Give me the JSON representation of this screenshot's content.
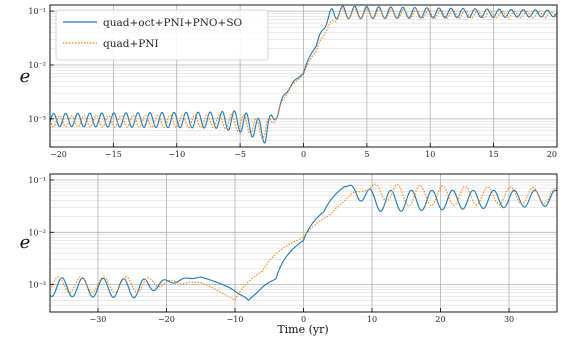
{
  "chart_data": [
    {
      "type": "line",
      "ylabel": "e",
      "xlabel": "",
      "xlim": [
        -20,
        20
      ],
      "ylim": [
        0.0003,
        0.13
      ],
      "yscale": "log",
      "grid": true,
      "xticks": [
        -20,
        -15,
        -10,
        -5,
        0,
        5,
        10,
        15,
        20
      ],
      "xtick_labels": [
        "−20",
        "−15",
        "−10",
        "−5",
        "0",
        "5",
        "10",
        "15",
        "20"
      ],
      "yticks": [
        0.001,
        0.01,
        0.1
      ],
      "ytick_labels": [
        "10⁻³",
        "10⁻²",
        "10⁻¹"
      ],
      "legend_position": "top-left",
      "series": [
        {
          "name": "quad+oct+PNI+PNO+SO",
          "color": "#1f77b4",
          "style": "solid",
          "x": [
            -20,
            -7,
            -5,
            -3,
            -2,
            0,
            1,
            1.8,
            2.3,
            20
          ],
          "y": [
            0.00095,
            0.00095,
            0.0009,
            0.00055,
            0.0013,
            0.007,
            0.022,
            0.06,
            0.095,
            0.09
          ],
          "osc_amp": [
            0.12,
            0.15,
            0.2,
            0.2,
            0.05,
            0,
            0,
            0.05,
            0.12,
            0.06
          ],
          "osc_period": 0.95
        },
        {
          "name": "quad+PNI",
          "color": "#ff7f0e",
          "style": "dotted",
          "x": [
            -20,
            -7,
            -5,
            -3,
            -2,
            0,
            1,
            2,
            2.8,
            20
          ],
          "y": [
            0.0009,
            0.0009,
            0.00085,
            0.0006,
            0.0012,
            0.0065,
            0.018,
            0.05,
            0.09,
            0.085
          ],
          "osc_amp": [
            0.1,
            0.12,
            0.16,
            0.16,
            0.04,
            0,
            0,
            0.04,
            0.1,
            0.05
          ],
          "osc_period": 0.97
        }
      ]
    },
    {
      "type": "line",
      "ylabel": "e",
      "xlabel": "Time (yr)",
      "xlim": [
        -37,
        37
      ],
      "ylim": [
        0.0003,
        0.13
      ],
      "yscale": "log",
      "grid": true,
      "xticks": [
        -30,
        -20,
        -10,
        0,
        10,
        20,
        30
      ],
      "xtick_labels": [
        "−30",
        "−20",
        "−10",
        "0",
        "10",
        "20",
        "30"
      ],
      "yticks": [
        0.001,
        0.01,
        0.1
      ],
      "ytick_labels": [
        "10⁻³",
        "10⁻²",
        "10⁻¹"
      ],
      "series": [
        {
          "name": "quad+oct+PNI+PNO+SO",
          "color": "#1f77b4",
          "style": "solid",
          "x": [
            -37,
            -24,
            -20,
            -15,
            -11,
            -8,
            -4,
            0,
            3,
            6,
            8,
            10,
            14,
            37
          ],
          "y": [
            0.0009,
            0.00085,
            0.0011,
            0.0014,
            0.0009,
            0.00048,
            0.0013,
            0.007,
            0.025,
            0.075,
            0.06,
            0.04,
            0.04,
            0.045
          ],
          "osc_amp": [
            0.18,
            0.18,
            0.05,
            0,
            0,
            0.02,
            0,
            0,
            0,
            0,
            0.15,
            0.2,
            0.2,
            0.15
          ],
          "osc_period": 3.0
        },
        {
          "name": "quad+PNI",
          "color": "#ff7f0e",
          "style": "dotted",
          "x": [
            -37,
            -24,
            -20,
            -15,
            -12,
            -10,
            -6,
            0,
            4,
            9,
            11,
            15,
            37
          ],
          "y": [
            0.001,
            0.001,
            0.0011,
            0.0011,
            0.0007,
            0.0005,
            0.0018,
            0.008,
            0.022,
            0.07,
            0.06,
            0.05,
            0.05
          ],
          "osc_amp": [
            0.15,
            0.15,
            0.05,
            0,
            0,
            0,
            0,
            0,
            0,
            0.05,
            0.15,
            0.2,
            0.15
          ],
          "osc_period": 3.3
        }
      ]
    }
  ]
}
